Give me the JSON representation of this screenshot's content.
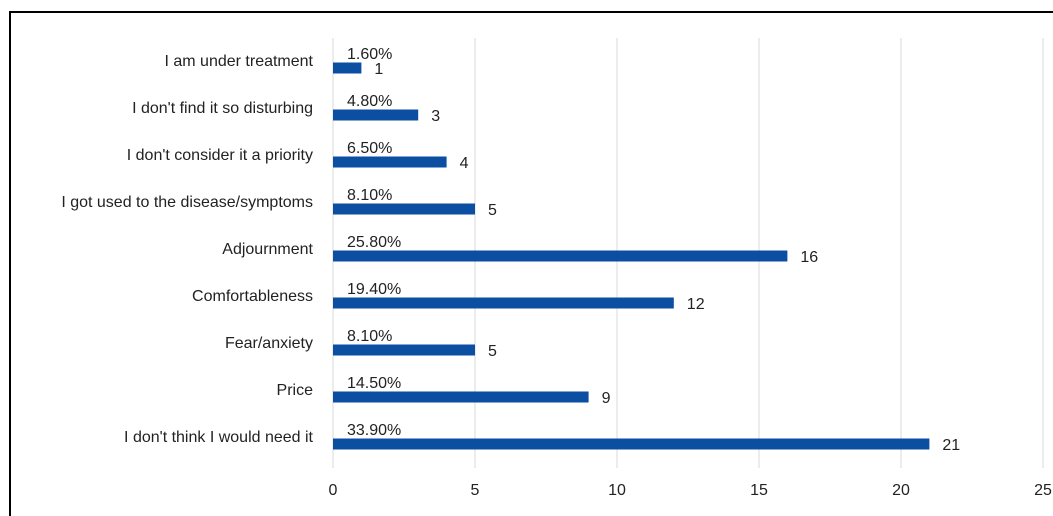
{
  "chart_data": {
    "type": "bar",
    "orientation": "horizontal",
    "categories": [
      "I am under treatment",
      "I don't find it so disturbing",
      "I don't consider it a priority",
      "I got used to the disease/symptoms",
      "Adjournment",
      "Comfortableness",
      "Fear/anxiety",
      "Price",
      "I don't think I would need it"
    ],
    "values": [
      1,
      3,
      4,
      5,
      16,
      12,
      5,
      9,
      21
    ],
    "percent_labels": [
      "1.60%",
      "4.80%",
      "6.50%",
      "8.10%",
      "25.80%",
      "19.40%",
      "8.10%",
      "14.50%",
      "33.90%"
    ],
    "color": "#0b4ea2",
    "xlim": [
      0,
      25
    ],
    "xticks": [
      0,
      5,
      10,
      15,
      20,
      25
    ],
    "grid": true
  }
}
